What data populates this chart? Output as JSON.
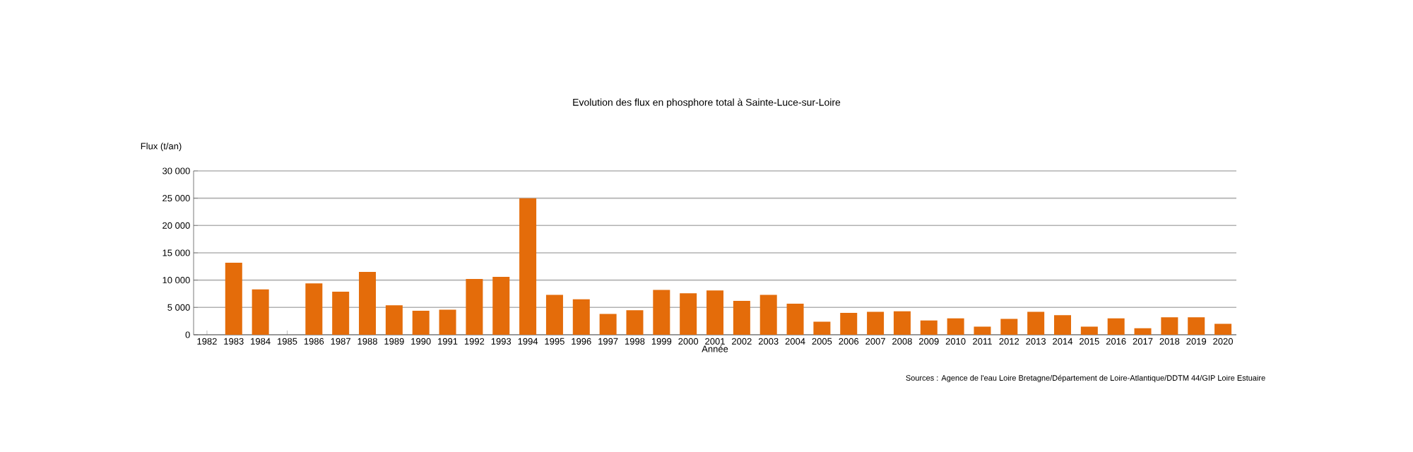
{
  "chart_data": {
    "type": "bar",
    "title": "Evolution des flux en phosphore total à Sainte-Luce-sur-Loire",
    "xlabel": "Année",
    "ylabel": "Flux (t/an)",
    "categories": [
      "1982",
      "1983",
      "1984",
      "1985",
      "1986",
      "1987",
      "1988",
      "1989",
      "1990",
      "1991",
      "1992",
      "1993",
      "1994",
      "1995",
      "1996",
      "1997",
      "1998",
      "1999",
      "2000",
      "2001",
      "2002",
      "2003",
      "2004",
      "2005",
      "2006",
      "2007",
      "2008",
      "2009",
      "2010",
      "2011",
      "2012",
      "2013",
      "2014",
      "2015",
      "2016",
      "2017",
      "2018",
      "2019",
      "2020"
    ],
    "values": [
      null,
      13200,
      8300,
      null,
      9400,
      7900,
      11500,
      5400,
      4400,
      4600,
      10200,
      10600,
      25000,
      7300,
      6500,
      3800,
      4500,
      8200,
      7600,
      8100,
      6200,
      7300,
      5700,
      2400,
      4000,
      4200,
      4300,
      2600,
      3000,
      1500,
      2900,
      4200,
      3600,
      1500,
      3000,
      1200,
      3200,
      3200,
      2000
    ],
    "color": "#e46c0a",
    "ylim": [
      0,
      30000
    ],
    "yticks": [
      {
        "value": 0,
        "label": "0"
      },
      {
        "value": 5000,
        "label": "5 000"
      },
      {
        "value": 10000,
        "label": "10 000"
      },
      {
        "value": 15000,
        "label": "15 000"
      },
      {
        "value": 20000,
        "label": "20 000"
      },
      {
        "value": 25000,
        "label": "25 000"
      },
      {
        "value": 30000,
        "label": "30 000"
      }
    ],
    "grid": "y",
    "annotations": [
      "Sources :  Agence de l'eau Loire Bretagne/Département de Loire-Atlantique/DDTM 44/GIP Loire Estuaire"
    ]
  }
}
